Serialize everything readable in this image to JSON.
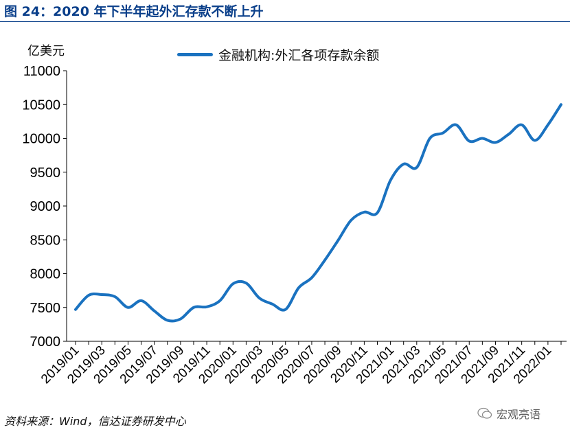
{
  "figure": {
    "title": "图 24：2020 年下半年起外汇存款不断上升",
    "unit": "亿美元",
    "source": "资料来源：Wind，信达证券研发中心",
    "watermark": "宏观亮语",
    "line_color": "#1a72c0",
    "title_color": "#0a3f8a"
  },
  "chart_data": {
    "type": "line",
    "title": "",
    "xlabel": "",
    "ylabel": "亿美元",
    "ylim": [
      7000,
      11000
    ],
    "yticks": [
      7000,
      7500,
      8000,
      8500,
      9000,
      9500,
      10000,
      10500,
      11000
    ],
    "xtick_labels": [
      "2019/01",
      "2019/03",
      "2019/05",
      "2019/07",
      "2019/09",
      "2019/11",
      "2020/01",
      "2020/03",
      "2020/05",
      "2020/07",
      "2020/09",
      "2020/11",
      "2021/01",
      "2021/03",
      "2021/05",
      "2021/07",
      "2021/09",
      "2021/11",
      "2022/01"
    ],
    "x": [
      "2019/01",
      "2019/02",
      "2019/03",
      "2019/04",
      "2019/05",
      "2019/06",
      "2019/07",
      "2019/08",
      "2019/09",
      "2019/10",
      "2019/11",
      "2019/12",
      "2020/01",
      "2020/02",
      "2020/03",
      "2020/04",
      "2020/05",
      "2020/06",
      "2020/07",
      "2020/08",
      "2020/09",
      "2020/10",
      "2020/11",
      "2020/12",
      "2021/01",
      "2021/02",
      "2021/03",
      "2021/04",
      "2021/05",
      "2021/06",
      "2021/07",
      "2021/08",
      "2021/09",
      "2021/10",
      "2021/11",
      "2021/12",
      "2022/01",
      "2022/02"
    ],
    "legend_position": "top",
    "series": [
      {
        "name": "金融机构:外汇各项存款余额",
        "values": [
          7470,
          7680,
          7690,
          7660,
          7500,
          7600,
          7450,
          7310,
          7330,
          7500,
          7510,
          7600,
          7850,
          7860,
          7640,
          7550,
          7470,
          7790,
          7940,
          8200,
          8490,
          8790,
          8910,
          8900,
          9380,
          9620,
          9570,
          10000,
          10080,
          10200,
          9960,
          10000,
          9940,
          10060,
          10200,
          9970,
          10200,
          10500
        ]
      }
    ]
  }
}
